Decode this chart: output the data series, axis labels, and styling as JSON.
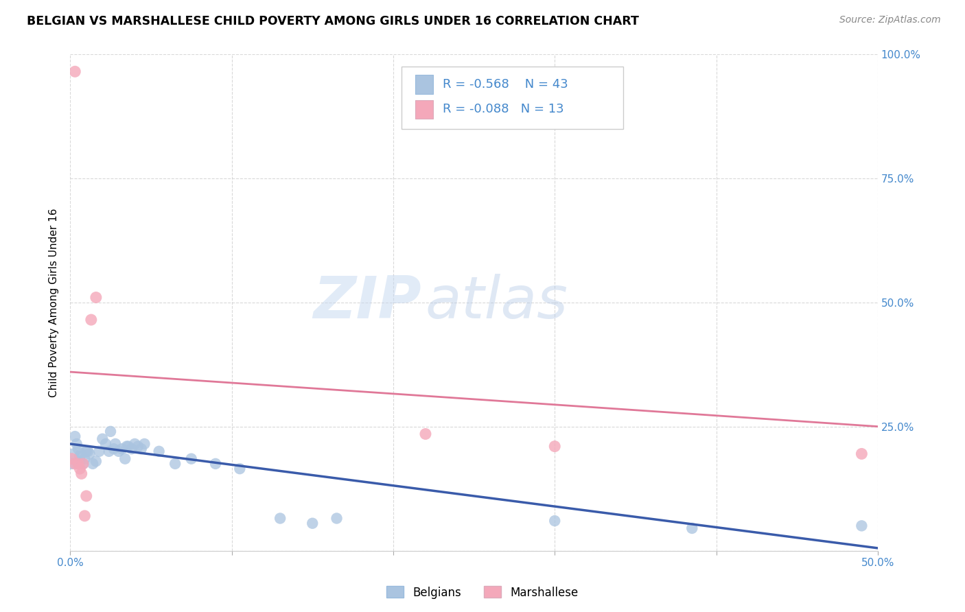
{
  "title": "BELGIAN VS MARSHALLESE CHILD POVERTY AMONG GIRLS UNDER 16 CORRELATION CHART",
  "source": "Source: ZipAtlas.com",
  "ylabel": "Child Poverty Among Girls Under 16",
  "xlim": [
    0.0,
    0.5
  ],
  "ylim": [
    0.0,
    1.0
  ],
  "xticks": [
    0.0,
    0.1,
    0.2,
    0.3,
    0.4,
    0.5
  ],
  "xticklabels": [
    "0.0%",
    "",
    "",
    "",
    "",
    "50.0%"
  ],
  "yticks_right": [
    0.0,
    0.25,
    0.5,
    0.75,
    1.0
  ],
  "yticklabels_right": [
    "",
    "25.0%",
    "50.0%",
    "75.0%",
    "100.0%"
  ],
  "belgians_color": "#aac4e0",
  "marshallese_color": "#f4a8ba",
  "belgian_line_color": "#3a5baa",
  "marshallese_line_color": "#e07898",
  "legend_R_belgian": "-0.568",
  "legend_N_belgian": "43",
  "legend_R_marshallese": "-0.088",
  "legend_N_marshallese": "13",
  "watermark_ZIP": "ZIP",
  "watermark_atlas": "atlas",
  "belgians_x": [
    0.001,
    0.002,
    0.003,
    0.004,
    0.005,
    0.006,
    0.006,
    0.007,
    0.008,
    0.009,
    0.01,
    0.011,
    0.012,
    0.014,
    0.016,
    0.018,
    0.02,
    0.022,
    0.024,
    0.025,
    0.027,
    0.028,
    0.03,
    0.032,
    0.034,
    0.035,
    0.036,
    0.038,
    0.04,
    0.042,
    0.044,
    0.046,
    0.055,
    0.065,
    0.075,
    0.09,
    0.105,
    0.13,
    0.15,
    0.165,
    0.3,
    0.385,
    0.49
  ],
  "belgians_y": [
    0.175,
    0.195,
    0.23,
    0.215,
    0.205,
    0.19,
    0.18,
    0.195,
    0.175,
    0.185,
    0.2,
    0.2,
    0.195,
    0.175,
    0.18,
    0.2,
    0.225,
    0.215,
    0.2,
    0.24,
    0.205,
    0.215,
    0.2,
    0.205,
    0.185,
    0.21,
    0.21,
    0.205,
    0.215,
    0.21,
    0.205,
    0.215,
    0.2,
    0.175,
    0.185,
    0.175,
    0.165,
    0.065,
    0.055,
    0.065,
    0.06,
    0.045,
    0.05
  ],
  "marshallese_x": [
    0.001,
    0.003,
    0.005,
    0.006,
    0.007,
    0.008,
    0.009,
    0.01,
    0.013,
    0.016,
    0.22,
    0.3,
    0.49
  ],
  "marshallese_y": [
    0.185,
    0.175,
    0.175,
    0.165,
    0.155,
    0.175,
    0.07,
    0.11,
    0.465,
    0.51,
    0.235,
    0.21,
    0.195
  ],
  "marshallese_outlier_x": [
    0.003
  ],
  "marshallese_outlier_y": [
    0.965
  ],
  "belgian_line_x0": 0.0,
  "belgian_line_x1": 0.5,
  "belgian_line_y0": 0.215,
  "belgian_line_y1": 0.005,
  "marshallese_line_x0": 0.0,
  "marshallese_line_x1": 0.5,
  "marshallese_line_y0": 0.36,
  "marshallese_line_y1": 0.25,
  "background_color": "#ffffff",
  "grid_color": "#d0d0d0",
  "title_fontsize": 12.5,
  "axis_label_fontsize": 11,
  "tick_fontsize": 11,
  "legend_fontsize": 13
}
